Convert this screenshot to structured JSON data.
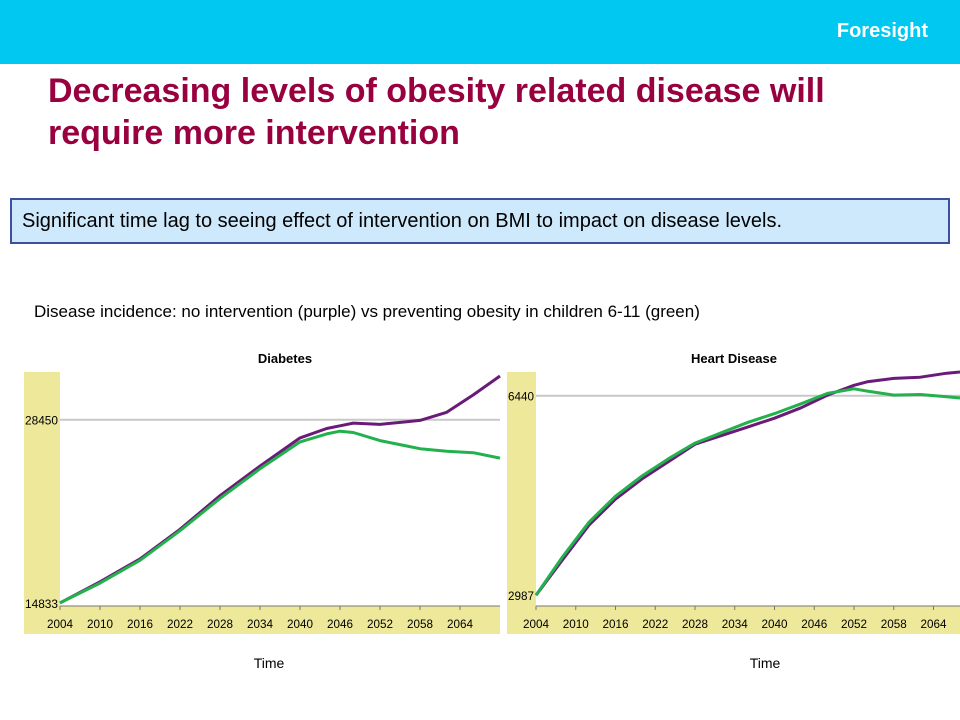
{
  "header": {
    "brand": "Foresight",
    "accent": "#00c8f0"
  },
  "title": "Decreasing levels of obesity related disease will require more intervention",
  "callout": {
    "text": "Significant time lag to seeing effect of intervention on BMI to impact on disease levels."
  },
  "subtitle": "Disease incidence: no intervention (purple) vs preventing obesity in children 6-11 (green)",
  "colors": {
    "purple": "#6a1a78",
    "green": "#22b14c",
    "axis_panel": "#eee89a",
    "reference": "#c8c8c8",
    "title": "#990040"
  },
  "chart_data": [
    {
      "type": "line",
      "title": "Diabetes",
      "xlabel": "Time",
      "ylabel": "",
      "x_ticks": [
        "2004",
        "2010",
        "2016",
        "2022",
        "2028",
        "2034",
        "2040",
        "2046",
        "2052",
        "2058",
        "2064"
      ],
      "y_ticks": [
        "14833",
        "28450"
      ],
      "xlim": [
        2004,
        2070
      ],
      "ylim": [
        14600,
        32000
      ],
      "reference_y": 28450,
      "x": [
        2004,
        2010,
        2016,
        2022,
        2028,
        2034,
        2040,
        2044,
        2046,
        2048,
        2052,
        2056,
        2058,
        2062,
        2066,
        2070
      ],
      "series": [
        {
          "name": "no intervention",
          "color": "#6a1a78",
          "values": [
            14833,
            16400,
            18100,
            20300,
            22800,
            25000,
            27100,
            27800,
            28000,
            28200,
            28100,
            28300,
            28400,
            29000,
            30300,
            31700
          ]
        },
        {
          "name": "preventing obesity in children 6-11",
          "color": "#22b14c",
          "values": [
            14833,
            16300,
            18000,
            20200,
            22600,
            24800,
            26800,
            27400,
            27600,
            27500,
            26900,
            26500,
            26300,
            26100,
            26000,
            25600
          ]
        }
      ]
    },
    {
      "type": "line",
      "title": "Heart Disease",
      "xlabel": "Time",
      "ylabel": "",
      "x_ticks": [
        "2004",
        "2010",
        "2016",
        "2022",
        "2028",
        "2034",
        "2040",
        "2046",
        "2052",
        "2058",
        "2064"
      ],
      "y_ticks": [
        "2987",
        "6440"
      ],
      "xlim": [
        2004,
        2068
      ],
      "ylim": [
        2800,
        6850
      ],
      "reference_y": 6440,
      "x": [
        2004,
        2008,
        2012,
        2016,
        2020,
        2024,
        2028,
        2032,
        2036,
        2040,
        2044,
        2048,
        2052,
        2054,
        2058,
        2062,
        2066,
        2068
      ],
      "series": [
        {
          "name": "no intervention",
          "color": "#6a1a78",
          "values": [
            2987,
            3600,
            4200,
            4650,
            5000,
            5300,
            5600,
            5750,
            5900,
            6050,
            6230,
            6450,
            6620,
            6680,
            6740,
            6760,
            6830,
            6850
          ]
        },
        {
          "name": "preventing obesity in children 6-11",
          "color": "#22b14c",
          "values": [
            2987,
            3650,
            4250,
            4700,
            5050,
            5350,
            5620,
            5800,
            5980,
            6130,
            6300,
            6480,
            6560,
            6520,
            6450,
            6460,
            6420,
            6400
          ]
        }
      ]
    }
  ]
}
